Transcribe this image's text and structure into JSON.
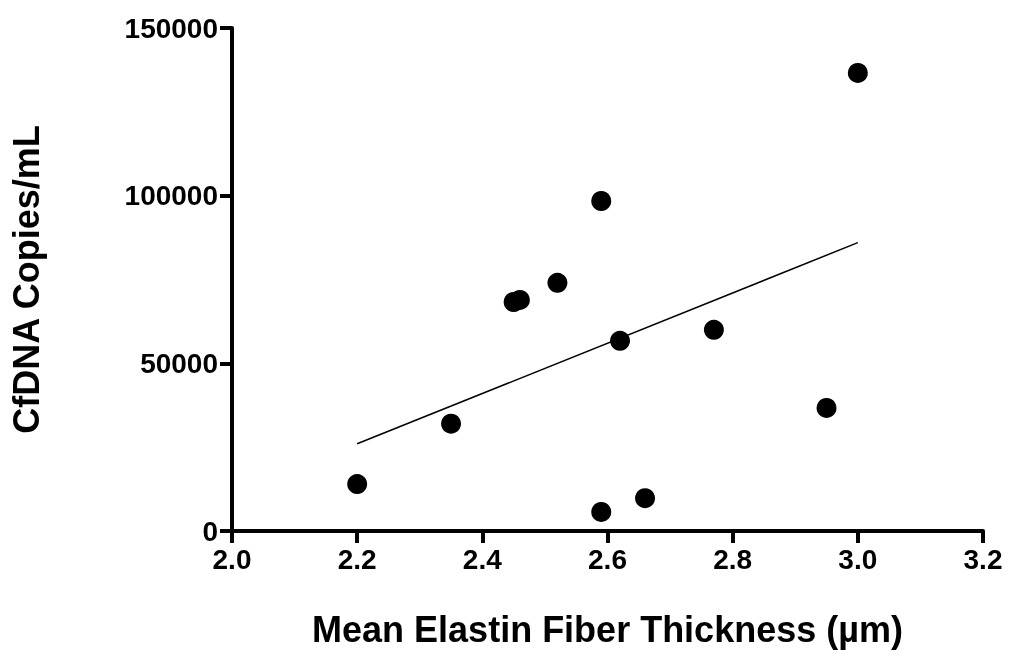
{
  "chart_data": {
    "type": "scatter",
    "xlabel": "Mean Elastin Fiber Thickness (µm)",
    "ylabel": "CfDNA Copies/mL",
    "xlim": [
      2.0,
      3.2
    ],
    "xticks": [
      {
        "value": 2.0,
        "label": "2.0"
      },
      2.2,
      2.4,
      2.6,
      2.8,
      {
        "value": 3.0,
        "label": "3.0"
      },
      3.2
    ],
    "ylim": [
      0,
      150000
    ],
    "yticks": [
      0,
      50000,
      100000,
      150000
    ],
    "grid": false,
    "marker": "circle",
    "series": [
      {
        "color": "#000000",
        "x": [
          2.2,
          2.35,
          2.45,
          2.46,
          2.52,
          2.59,
          2.59,
          2.62,
          2.66,
          2.77,
          2.95,
          3.0
        ],
        "values": [
          14000,
          32000,
          68300,
          68900,
          74000,
          98400,
          5700,
          56700,
          9800,
          60000,
          36700,
          136600
        ]
      },
      {
        "type": "line",
        "color": "#000000",
        "marker": "none",
        "line_style": "solid",
        "x": [
          2.2,
          3.0
        ],
        "values": [
          26000,
          86000
        ]
      }
    ]
  }
}
